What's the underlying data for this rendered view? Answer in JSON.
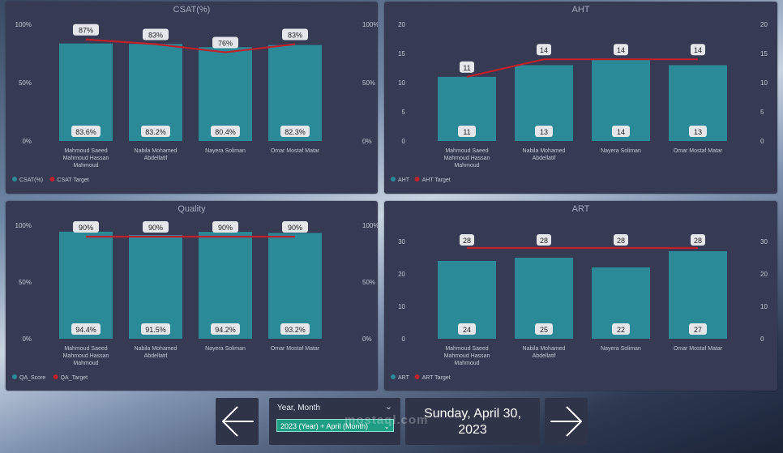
{
  "panels": [
    {
      "id": "csat",
      "title": "CSAT(%)",
      "left_axis": [
        "100%",
        "50%",
        "0%"
      ],
      "right_axis": [
        "100%",
        "50%",
        "0%"
      ],
      "legend": [
        {
          "label": "CSAT(%)",
          "color": "#2a8a98"
        },
        {
          "label": "CSAT Target",
          "color": "#c0212b"
        }
      ]
    },
    {
      "id": "aht",
      "title": "AHT",
      "left_axis": [
        "20",
        "15",
        "10",
        "5",
        "0"
      ],
      "right_axis": [
        "20",
        "15",
        "10",
        "5",
        "0"
      ],
      "legend": [
        {
          "label": "AHT",
          "color": "#2a8a98"
        },
        {
          "label": "AHT Target",
          "color": "#c0212b"
        }
      ]
    },
    {
      "id": "quality",
      "title": "Quality",
      "left_axis": [
        "100%",
        "50%",
        "0%"
      ],
      "right_axis": [
        "100%",
        "50%",
        "0%"
      ],
      "legend": [
        {
          "label": "QA_Score",
          "color": "#2a8a98"
        },
        {
          "label": "QA_Target",
          "color": "#c0212b"
        }
      ]
    },
    {
      "id": "art",
      "title": "ART",
      "left_axis": [
        "30",
        "20",
        "10",
        "0"
      ],
      "right_axis": [
        "30",
        "20",
        "10",
        "0"
      ],
      "legend": [
        {
          "label": "ART",
          "color": "#2a8a98"
        },
        {
          "label": "ART Target",
          "color": "#c0212b"
        }
      ]
    }
  ],
  "agents": [
    [
      "Mahmoud Saeed",
      "Mahmoud Hassan",
      "Mahmoud"
    ],
    [
      "Nabila Mohamed",
      "Abdellatif"
    ],
    [
      "Nayera Soliman"
    ],
    [
      "Omar Mostaf Matar"
    ]
  ],
  "chart_data": [
    {
      "type": "bar",
      "title": "CSAT(%)",
      "categories": [
        "Mahmoud Saeed Mahmoud Hassan Mahmoud",
        "Nabila Mohamed Abdellatif",
        "Nayera Soliman",
        "Omar Mostaf Matar"
      ],
      "series": [
        {
          "name": "CSAT(%)",
          "values": [
            83.6,
            83.2,
            80.4,
            82.3
          ],
          "labels": [
            "83.6%",
            "83.2%",
            "80.4%",
            "82.3%"
          ]
        },
        {
          "name": "CSAT Target",
          "type": "line",
          "values": [
            87,
            83,
            76,
            83
          ],
          "labels": [
            "87%",
            "83%",
            "76%",
            "83%"
          ]
        }
      ],
      "ylim": [
        0,
        100
      ]
    },
    {
      "type": "bar",
      "title": "AHT",
      "categories": [
        "Mahmoud Saeed Mahmoud Hassan Mahmoud",
        "Nabila Mohamed Abdellatif",
        "Nayera Soliman",
        "Omar Mostaf Matar"
      ],
      "series": [
        {
          "name": "AHT",
          "values": [
            11,
            13,
            14,
            13
          ],
          "labels": [
            "11",
            "13",
            "14",
            "13"
          ]
        },
        {
          "name": "AHT Target",
          "type": "line",
          "values": [
            11,
            14,
            14,
            14
          ],
          "labels": [
            "11",
            "14",
            "14",
            "14"
          ]
        }
      ],
      "ylim": [
        0,
        20
      ]
    },
    {
      "type": "bar",
      "title": "Quality",
      "categories": [
        "Mahmoud Saeed Mahmoud Hassan Mahmoud",
        "Nabila Mohamed Abdellatif",
        "Nayera Soliman",
        "Omar Mostaf Matar"
      ],
      "series": [
        {
          "name": "QA_Score",
          "values": [
            94.4,
            91.5,
            94.2,
            93.2
          ],
          "labels": [
            "94.4%",
            "91.5%",
            "94.2%",
            "93.2%"
          ]
        },
        {
          "name": "QA_Target",
          "type": "line",
          "values": [
            90,
            90,
            90,
            90
          ],
          "labels": [
            "90%",
            "90%",
            "90%",
            "90%"
          ]
        }
      ],
      "ylim": [
        0,
        100
      ]
    },
    {
      "type": "bar",
      "title": "ART",
      "categories": [
        "Mahmoud Saeed Mahmoud Hassan Mahmoud",
        "Nabila Mohamed Abdellatif",
        "Nayera Soliman",
        "Omar Mostaf Matar"
      ],
      "series": [
        {
          "name": "ART",
          "values": [
            24,
            25,
            22,
            27
          ],
          "labels": [
            "24",
            "25",
            "22",
            "27"
          ]
        },
        {
          "name": "ART Target",
          "type": "line",
          "values": [
            28,
            28,
            28,
            28
          ],
          "labels": [
            "28",
            "28",
            "28",
            "28"
          ]
        }
      ],
      "ylim": [
        0,
        30
      ]
    }
  ],
  "slicer": {
    "title": "Year, Month",
    "selected": "2023 (Year) + April (Month)"
  },
  "date_card": {
    "line1": "Sunday, April 30,",
    "line2": "2023"
  },
  "watermark": "mostaql.com",
  "colors": {
    "panel_bg": "#363a52",
    "bar": "#2a8a98",
    "target_line": "#c0212b",
    "slicer_selected": "#1f9e86"
  }
}
